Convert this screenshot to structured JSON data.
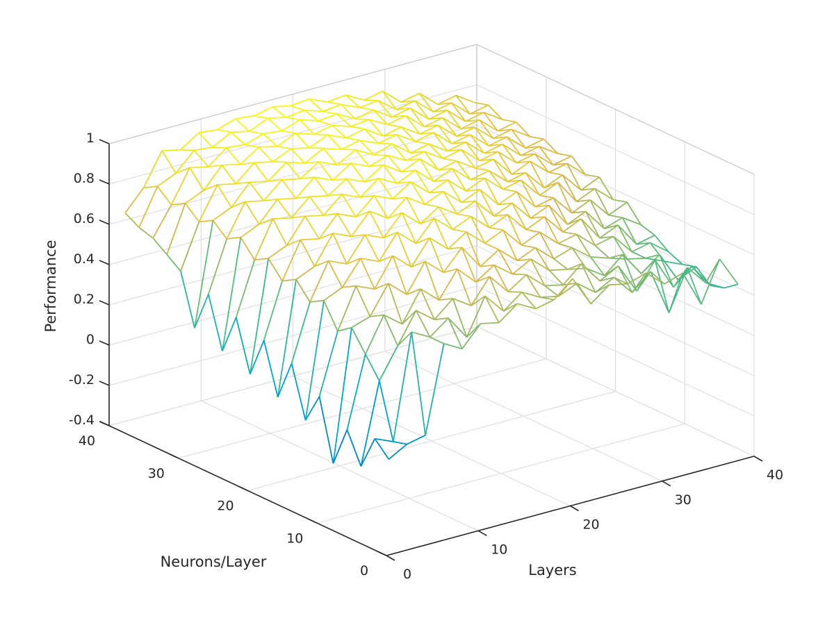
{
  "chart_data": {
    "type": "surface",
    "style": "mesh",
    "colormap": "parula",
    "colors": {
      "low": "#0072bd",
      "mid_low": "#00a5c9",
      "mid": "#44b989",
      "mid_high": "#d9b84a",
      "high": "#f9fb0e"
    },
    "xlabel": "Layers",
    "ylabel": "Neurons/Layer",
    "zlabel": "Performance",
    "xlim": [
      0,
      40
    ],
    "ylim": [
      0,
      40
    ],
    "zlim": [
      -0.4,
      1
    ],
    "xticks": [
      0,
      10,
      20,
      30,
      40
    ],
    "yticks": [
      0,
      10,
      20,
      30,
      40
    ],
    "zticks": [
      -0.4,
      -0.2,
      0,
      0.2,
      0.4,
      0.6,
      0.8,
      1
    ],
    "xtick_labels": [
      "0",
      "10",
      "20",
      "30",
      "40"
    ],
    "ytick_labels": [
      "0",
      "10",
      "20",
      "30",
      "40"
    ],
    "ztick_labels": [
      "-0.4",
      "-0.2",
      "0",
      "0.2",
      "0.4",
      "0.6",
      "0.8",
      "1"
    ],
    "grid": true,
    "grid_x": [
      1,
      3,
      5,
      7,
      9,
      11,
      13,
      15,
      17,
      19,
      21,
      23,
      25,
      27,
      29,
      31,
      33,
      35,
      37,
      39
    ],
    "grid_y": [
      1,
      3,
      5,
      7,
      9,
      11,
      13,
      15,
      17,
      19,
      21,
      23,
      25,
      27,
      29,
      31,
      33,
      35,
      37,
      39
    ],
    "z_rows_description_note": "",
    "z": [
      [
        0.05,
        0.1,
        0.12,
        0.55,
        0.5,
        0.6,
        0.58,
        0.65,
        0.6,
        0.62,
        0.7,
        0.55,
        0.62,
        0.6,
        0.63,
        0.55,
        0.58,
        0.4,
        0.6,
        0.45
      ],
      [
        0.12,
        0.08,
        0.6,
        0.55,
        0.62,
        0.5,
        0.68,
        0.58,
        0.65,
        0.6,
        0.58,
        0.62,
        0.55,
        0.6,
        0.5,
        0.58,
        0.35,
        0.55,
        0.45,
        0.4
      ],
      [
        -0.05,
        0.35,
        0.5,
        0.65,
        0.58,
        0.66,
        0.6,
        0.72,
        0.62,
        0.68,
        0.6,
        0.58,
        0.66,
        0.55,
        0.6,
        0.45,
        0.58,
        0.42,
        0.5,
        0.38
      ],
      [
        0.1,
        0.45,
        0.62,
        0.55,
        0.7,
        0.62,
        0.75,
        0.66,
        0.72,
        0.65,
        0.7,
        0.62,
        0.6,
        0.58,
        0.52,
        0.6,
        0.48,
        0.55,
        0.4,
        0.44
      ],
      [
        -0.1,
        0.55,
        0.58,
        0.72,
        0.64,
        0.78,
        0.7,
        0.8,
        0.68,
        0.74,
        0.66,
        0.7,
        0.62,
        0.65,
        0.58,
        0.55,
        0.52,
        0.5,
        0.46,
        0.42
      ],
      [
        0.2,
        0.5,
        0.7,
        0.66,
        0.8,
        0.72,
        0.84,
        0.76,
        0.82,
        0.74,
        0.78,
        0.68,
        0.72,
        0.64,
        0.66,
        0.58,
        0.6,
        0.5,
        0.52,
        0.45
      ],
      [
        0.05,
        0.62,
        0.66,
        0.78,
        0.74,
        0.86,
        0.78,
        0.88,
        0.8,
        0.84,
        0.76,
        0.8,
        0.7,
        0.74,
        0.64,
        0.68,
        0.56,
        0.6,
        0.48,
        0.5
      ],
      [
        0.3,
        0.58,
        0.76,
        0.72,
        0.84,
        0.8,
        0.9,
        0.82,
        0.88,
        0.82,
        0.86,
        0.76,
        0.8,
        0.7,
        0.74,
        0.62,
        0.66,
        0.55,
        0.58,
        0.52
      ],
      [
        0.1,
        0.66,
        0.7,
        0.84,
        0.8,
        0.9,
        0.84,
        0.92,
        0.86,
        0.9,
        0.82,
        0.86,
        0.76,
        0.8,
        0.7,
        0.72,
        0.62,
        0.66,
        0.56,
        0.6
      ],
      [
        0.35,
        0.62,
        0.8,
        0.78,
        0.88,
        0.84,
        0.92,
        0.88,
        0.94,
        0.86,
        0.9,
        0.82,
        0.86,
        0.78,
        0.8,
        0.7,
        0.74,
        0.62,
        0.66,
        0.58
      ],
      [
        0.15,
        0.7,
        0.74,
        0.86,
        0.84,
        0.92,
        0.88,
        0.95,
        0.9,
        0.94,
        0.86,
        0.9,
        0.82,
        0.84,
        0.76,
        0.78,
        0.68,
        0.72,
        0.62,
        0.66
      ],
      [
        0.4,
        0.66,
        0.84,
        0.82,
        0.9,
        0.88,
        0.94,
        0.9,
        0.96,
        0.9,
        0.94,
        0.86,
        0.88,
        0.82,
        0.84,
        0.74,
        0.78,
        0.7,
        0.72,
        0.64
      ],
      [
        0.2,
        0.74,
        0.78,
        0.88,
        0.86,
        0.94,
        0.9,
        0.96,
        0.92,
        0.95,
        0.9,
        0.92,
        0.86,
        0.88,
        0.8,
        0.82,
        0.74,
        0.76,
        0.68,
        0.7
      ],
      [
        0.45,
        0.7,
        0.86,
        0.84,
        0.92,
        0.9,
        0.96,
        0.92,
        0.97,
        0.92,
        0.95,
        0.88,
        0.9,
        0.84,
        0.86,
        0.78,
        0.8,
        0.72,
        0.74,
        0.68
      ],
      [
        0.25,
        0.76,
        0.8,
        0.9,
        0.88,
        0.95,
        0.92,
        0.97,
        0.94,
        0.96,
        0.92,
        0.94,
        0.88,
        0.9,
        0.82,
        0.84,
        0.76,
        0.78,
        0.7,
        0.72
      ],
      [
        0.5,
        0.72,
        0.88,
        0.86,
        0.94,
        0.92,
        0.96,
        0.94,
        0.98,
        0.94,
        0.96,
        0.9,
        0.92,
        0.86,
        0.88,
        0.8,
        0.82,
        0.74,
        0.76,
        0.7
      ],
      [
        0.55,
        0.78,
        0.82,
        0.92,
        0.9,
        0.96,
        0.94,
        0.98,
        0.95,
        0.97,
        0.94,
        0.95,
        0.9,
        0.92,
        0.84,
        0.86,
        0.78,
        0.8,
        0.72,
        0.74
      ],
      [
        0.6,
        0.74,
        0.9,
        0.88,
        0.95,
        0.94,
        0.97,
        0.96,
        0.99,
        0.96,
        0.97,
        0.92,
        0.94,
        0.88,
        0.9,
        0.82,
        0.84,
        0.76,
        0.78,
        0.72
      ],
      [
        0.62,
        0.8,
        0.84,
        0.93,
        0.92,
        0.97,
        0.95,
        0.99,
        0.97,
        0.98,
        0.95,
        0.96,
        0.92,
        0.93,
        0.86,
        0.88,
        0.8,
        0.82,
        0.74,
        0.76
      ],
      [
        0.66,
        0.76,
        0.92,
        0.9,
        0.96,
        0.95,
        0.98,
        0.97,
        0.99,
        0.97,
        0.98,
        0.94,
        0.95,
        0.9,
        0.92,
        0.84,
        0.86,
        0.78,
        0.8,
        0.74
      ]
    ]
  }
}
